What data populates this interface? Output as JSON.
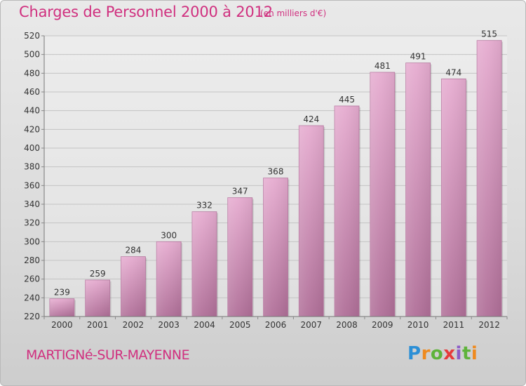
{
  "header": {
    "title": "Charges de Personnel 2000 à 2012",
    "subtitle": "(en milliers d'€)"
  },
  "footer": {
    "commune": "MARTIGNé-SUR-MAYENNE",
    "logo": "Proxiti"
  },
  "colors": {
    "title": "#d0307f",
    "bar_top": "#e6acd0",
    "bar_bottom": "#b06f98"
  },
  "chart_data": {
    "type": "bar",
    "title": "Charges de Personnel 2000 à 2012",
    "subtitle": "(en milliers d'€)",
    "categories": [
      "2000",
      "2001",
      "2002",
      "2003",
      "2004",
      "2005",
      "2006",
      "2007",
      "2008",
      "2009",
      "2010",
      "2011",
      "2012"
    ],
    "values": [
      239,
      259,
      284,
      300,
      332,
      347,
      368,
      424,
      445,
      481,
      491,
      474,
      515
    ],
    "ylim": [
      220,
      520
    ],
    "yticks": [
      220,
      240,
      260,
      280,
      300,
      320,
      340,
      360,
      380,
      400,
      420,
      440,
      460,
      480,
      500,
      520
    ],
    "grid": "horizontal",
    "legend": "none"
  }
}
